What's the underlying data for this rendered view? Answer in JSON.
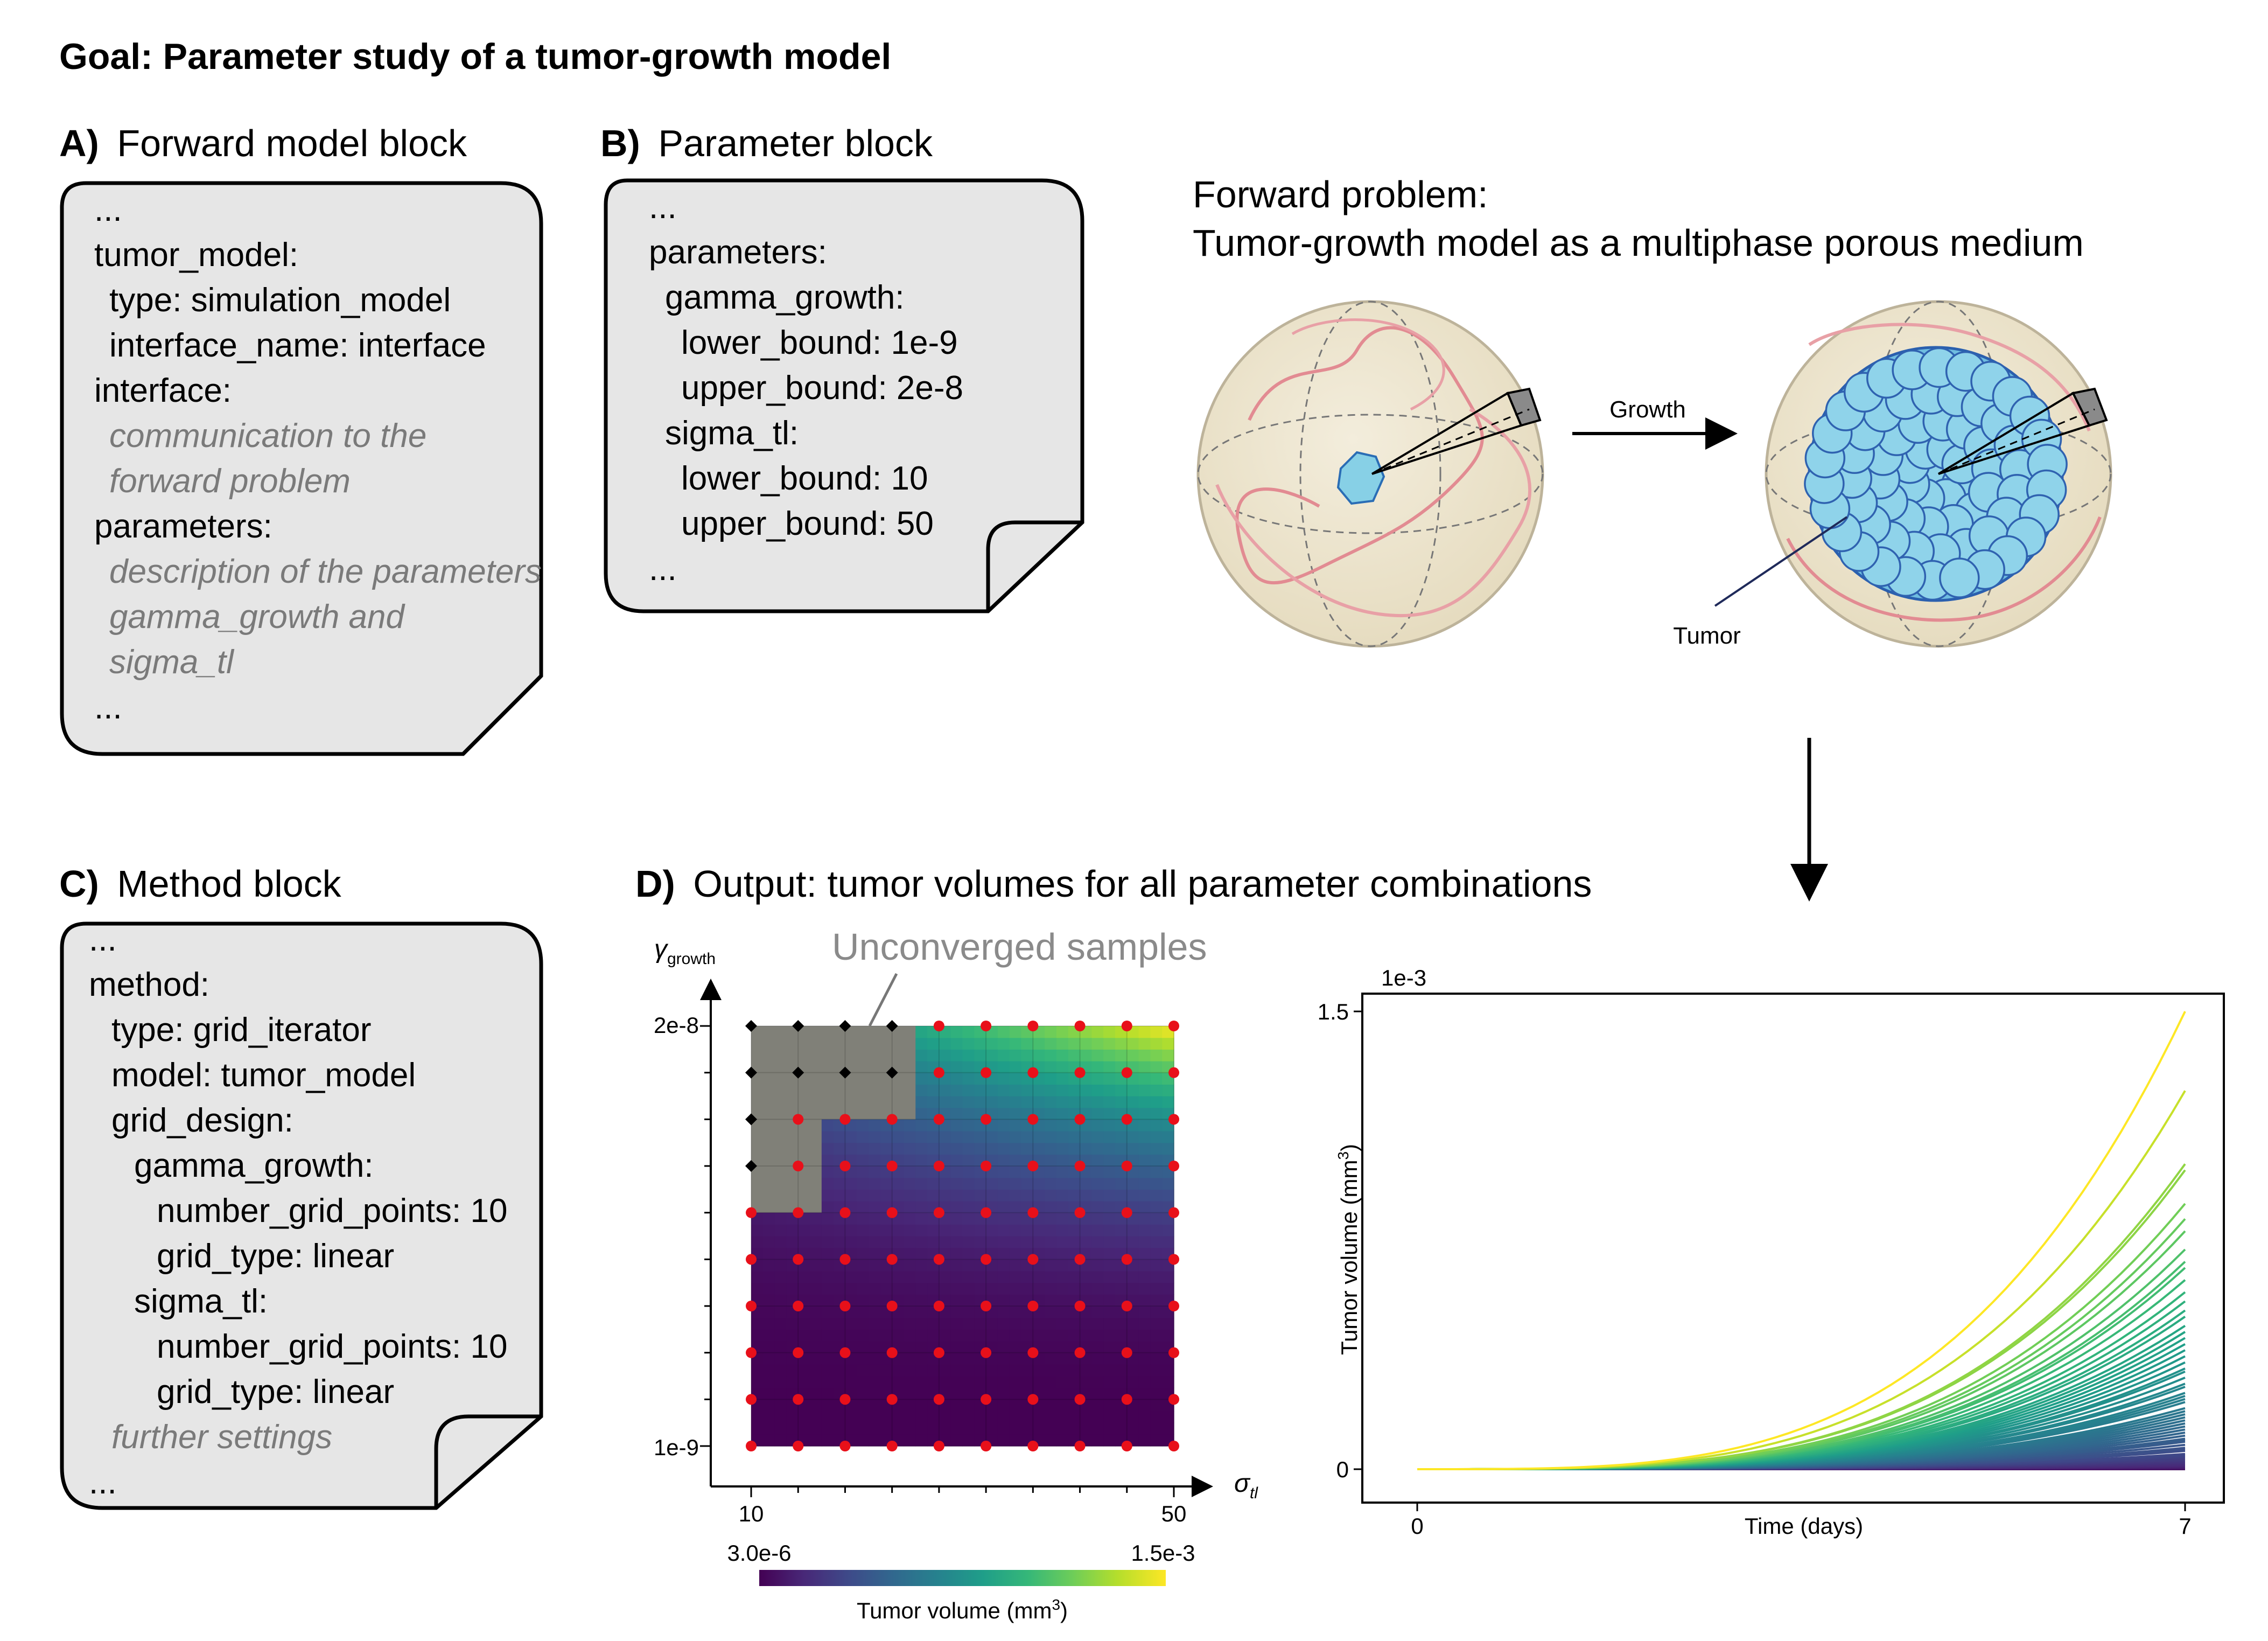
{
  "title": "Goal: Parameter study of a tumor-growth model",
  "panel_a": {
    "label": "A)",
    "heading": "Forward model block",
    "lines": [
      {
        "text": "...",
        "indent": 0,
        "style": "code"
      },
      {
        "text": "tumor_model:",
        "indent": 0,
        "style": "code"
      },
      {
        "text": "type: simulation_model",
        "indent": 1,
        "style": "code"
      },
      {
        "text": "interface_name: interface",
        "indent": 1,
        "style": "code"
      },
      {
        "text": "interface:",
        "indent": 0,
        "style": "code"
      },
      {
        "text": "communication to the",
        "indent": 1,
        "style": "comment"
      },
      {
        "text": "forward problem",
        "indent": 1,
        "style": "comment"
      },
      {
        "text": "parameters:",
        "indent": 0,
        "style": "code"
      },
      {
        "text": "description of the parameters",
        "indent": 1,
        "style": "comment"
      },
      {
        "text": "gamma_growth and",
        "indent": 1,
        "style": "comment"
      },
      {
        "text": "sigma_tl",
        "indent": 1,
        "style": "comment"
      },
      {
        "text": "...",
        "indent": 0,
        "style": "code"
      }
    ]
  },
  "panel_b": {
    "label": "B)",
    "heading": "Parameter block",
    "lines": [
      {
        "text": "...",
        "indent": 0,
        "style": "code"
      },
      {
        "text": "parameters:",
        "indent": 0,
        "style": "code"
      },
      {
        "text": "gamma_growth:",
        "indent": 1,
        "style": "code"
      },
      {
        "text": "lower_bound: 1e-9",
        "indent": 2,
        "style": "code"
      },
      {
        "text": "upper_bound: 2e-8",
        "indent": 2,
        "style": "code"
      },
      {
        "text": "sigma_tl:",
        "indent": 1,
        "style": "code"
      },
      {
        "text": "lower_bound: 10",
        "indent": 2,
        "style": "code"
      },
      {
        "text": "upper_bound: 50",
        "indent": 2,
        "style": "code"
      },
      {
        "text": "...",
        "indent": 0,
        "style": "code"
      }
    ]
  },
  "panel_c": {
    "label": "C)",
    "heading": "Method block",
    "lines": [
      {
        "text": "...",
        "indent": 0,
        "style": "code"
      },
      {
        "text": "method:",
        "indent": 0,
        "style": "code"
      },
      {
        "text": "type: grid_iterator",
        "indent": 1,
        "style": "code"
      },
      {
        "text": "model: tumor_model",
        "indent": 1,
        "style": "code"
      },
      {
        "text": "grid_design:",
        "indent": 1,
        "style": "code"
      },
      {
        "text": "gamma_growth:",
        "indent": 2,
        "style": "code"
      },
      {
        "text": "number_grid_points: 10",
        "indent": 3,
        "style": "code"
      },
      {
        "text": "grid_type: linear",
        "indent": 3,
        "style": "code"
      },
      {
        "text": "sigma_tl:",
        "indent": 2,
        "style": "code"
      },
      {
        "text": "number_grid_points: 10",
        "indent": 3,
        "style": "code"
      },
      {
        "text": "grid_type: linear",
        "indent": 3,
        "style": "code"
      },
      {
        "text": "further settings",
        "indent": 1,
        "style": "comment"
      },
      {
        "text": "...",
        "indent": 0,
        "style": "code"
      }
    ]
  },
  "forward_problem": {
    "line1": "Forward problem:",
    "line2": "Tumor-growth model as a multiphase porous medium",
    "arrow_label": "Growth",
    "tumor_label": "Tumor"
  },
  "panel_d": {
    "label": "D)",
    "heading": "Output: tumor volumes for all parameter combinations"
  },
  "chart_data": [
    {
      "type": "heatmap",
      "title": "",
      "xlabel_main": "σ",
      "xlabel_sub": "tl",
      "ylabel_main": "γ",
      "ylabel_sub": "growth",
      "x_tick_labels": [
        "10",
        "50"
      ],
      "y_tick_labels": [
        "1e-9",
        "2e-8"
      ],
      "xlim": [
        10,
        50
      ],
      "ylim": [
        1e-09,
        2e-08
      ],
      "grid_points": 10,
      "annotation": "Unconverged samples",
      "unconverged": [
        [
          0,
          9
        ],
        [
          1,
          9
        ],
        [
          2,
          9
        ],
        [
          3,
          9
        ],
        [
          0,
          8
        ],
        [
          1,
          8
        ],
        [
          2,
          8
        ],
        [
          3,
          8
        ],
        [
          0,
          7
        ],
        [
          0,
          6
        ]
      ],
      "colorbar": {
        "label_main": "Tumor volume (mm",
        "label_sup": "3",
        "label_end": ")",
        "min_label": "3.0e-6",
        "max_label": "1.5e-3",
        "colormap": [
          "#440154",
          "#482878",
          "#3e4a89",
          "#31688e",
          "#26828e",
          "#1f9e89",
          "#35b779",
          "#6dcd59",
          "#b4de2c",
          "#fde725"
        ]
      }
    },
    {
      "type": "line",
      "title": "",
      "xlabel": "Time (days)",
      "ylabel_main": "Tumor volume (mm",
      "ylabel_sup": "3",
      "ylabel_end": ")",
      "y_multiplier": "1e-3",
      "x_tick_labels": [
        "0",
        "7"
      ],
      "y_tick_labels": [
        "0",
        "1.5"
      ],
      "xlim": [
        0,
        7
      ],
      "ylim": [
        0,
        1.5
      ],
      "curve_model": "V(t) = Vmax * (t/7)^3.5",
      "series_final_values": [
        1.5,
        1.24,
        1.0,
        0.98,
        0.87,
        0.82,
        0.78,
        0.72,
        0.68,
        0.66,
        0.62,
        0.58,
        0.55,
        0.52,
        0.5,
        0.47,
        0.45,
        0.43,
        0.41,
        0.39,
        0.37,
        0.35,
        0.33,
        0.32,
        0.3,
        0.28,
        0.27,
        0.25,
        0.24,
        0.23,
        0.22,
        0.2,
        0.19,
        0.18,
        0.17,
        0.16,
        0.15,
        0.14,
        0.13,
        0.12,
        0.11,
        0.1,
        0.095,
        0.09,
        0.08,
        0.07,
        0.065,
        0.06,
        0.05,
        0.045,
        0.04,
        0.035,
        0.03,
        0.025,
        0.02,
        0.015,
        0.012,
        0.01,
        0.008,
        0.006,
        0.005,
        0.004,
        0.003,
        0.002,
        0.0015,
        0.001,
        0.0008,
        0.0005,
        0.0003,
        0.0002
      ]
    }
  ]
}
